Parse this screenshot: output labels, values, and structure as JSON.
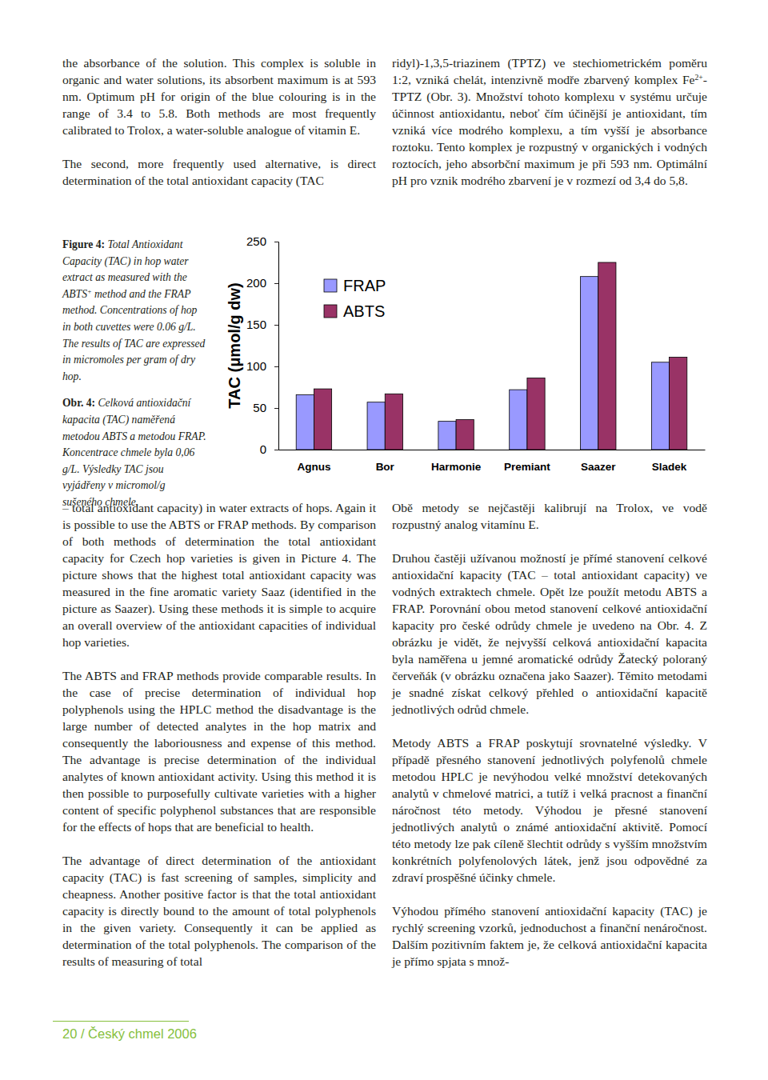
{
  "page": {
    "top_left": [
      "the absorbance of the solution. This complex is soluble in organic and water solutions, its absorbent maximum is at 593 nm. Optimum pH for origin of the blue colouring is in the range of 3.4 to 5.8. Both methods are most frequently calibrated to Trolox, a water-soluble analogue of vitamin E.",
      "The second, more frequently used alternative, is direct determination of the total antioxidant capacity (TAC"
    ],
    "top_right": [
      [
        {
          "text": "ridyl)-1,3,5-triazinem (TPTZ) ve stechiometrickém poměru 1:2, vzniká chelát, intenzivně modře zbarvený komplex Fe"
        },
        {
          "text": "2+",
          "sup": true
        },
        {
          "text": "-TPTZ (Obr. 3). Množství tohoto komplexu v systému určuje účinnost antioxidantu, neboť čím účinější je antioxidant, tím vzniká více modrého komplexu, a tím vyšší je absorbance roztoku. Tento komplex je rozpustný v organických i vodných roztocích, jeho absorbční maximum je při 593 nm. Optimální pH pro vznik modrého zbarvení je v rozmezí od 3,4 do 5,8."
        }
      ]
    ],
    "caption": [
      [
        {
          "text": "Figure 4:",
          "bold": true
        },
        {
          "text": " Total Antioxidant Capacity (TAC) in hop water extract as measured with the ABTS"
        },
        {
          "text": "+",
          "sup": true
        },
        {
          "text": " method and the FRAP method. Concentrations of hop in both cuvettes were 0.06 g/L. The results of TAC are expressed in micromoles per gram of dry hop."
        }
      ],
      [
        {
          "text": "Obr. 4:",
          "bold": true
        },
        {
          "text": " Celková antioxidační kapacita (TAC) naměřená metodou ABTS a metodou FRAP. Koncentrace chmele byla 0,06 g/L. Výsledky TAC jsou vyjádřeny v micromol/g sušeného chmele."
        }
      ]
    ],
    "bottom_left": [
      "– total antioxidant capacity) in water extracts of hops. Again it is possible to use the ABTS or FRAP methods. By comparison of both methods of determination the total antioxidant capacity for Czech hop varieties is given in Picture 4. The picture shows that the highest total antioxidant capacity was measured in the fine aromatic variety Saaz (identified in the picture as Saazer). Using these methods it is simple to acquire an overall overview of the antioxidant capacities of individual hop varieties.",
      "The ABTS and FRAP methods provide comparable results. In the case of precise determination of individual hop polyphenols using the HPLC method the disadvantage is the large number of detected analytes in the hop matrix and consequently the laboriousness and expense of this method. The advantage is precise determination of the individual analytes of known antioxidant activity. Using this method it is then possible to purposefully cultivate varieties with a higher content of specific polyphenol substances that are responsible for the effects of hops that are beneficial to health.",
      "The advantage of direct determination of the antioxidant capacity (TAC) is fast screening of samples, simplicity and cheapness. Another positive factor is that the total antioxidant capacity is directly bound to the amount of total polyphenols in the given variety. Consequently it can be applied as determination of the total polyphenols. The comparison of the results of measuring of total"
    ],
    "bottom_right": [
      "Obě metody se nejčastěji kalibrují na Trolox, ve vodě rozpustný analog vitamínu E.",
      "Druhou častěji užívanou možností je přímé stanovení celkové antioxidační kapacity (TAC – total antioxidant capacity) ve vodných extraktech chmele. Opět lze použít metodu ABTS a FRAP. Porovnání obou metod stanovení celkové antioxidační kapacity pro české odrůdy chmele je uvedeno na Obr. 4. Z obrázku je vidět, že nejvyšší celková antioxidační kapacita byla naměřena u jemné aromatické odrůdy Žatecký poloraný červeňák (v obrázku označena jako Saazer). Těmito metodami je snadné získat celkový přehled o antioxidační kapacitě jednotlivých odrůd chmele.",
      "Metody ABTS a FRAP poskytují srovnatelné výsledky. V případě přesného stanovení jednotlivých polyfenolů chmele metodou HPLC je nevýhodou velké množství detekovaných analytů v chmelové matrici, a tutíž i velká pracnost a finanční náročnost této metody. Výhodou je přesné stanovení jednotlivých analytů o známé antioxidační aktivitě. Pomocí této metody lze pak cíleně šlechtit odrůdy s vyšším množstvím konkrétních polyfenolových látek, jenž jsou odpovědné za zdraví prospěšné účinky chmele.",
      "Výhodou přímého stanovení antioxidační kapacity (TAC) je rychlý screening vzorků, jednoduchost a finanční nenáročnost. Dalším pozitivním faktem je, že celková antioxidační kapacita je přímo spjata s množ-"
    ],
    "footer": "20 / Český chmel 2006"
  },
  "chart_data": {
    "type": "bar",
    "y_label": "TAC (μmol/g dw)",
    "categories": [
      "Agnus",
      "Bor",
      "Harmonie",
      "Premiant",
      "Saazer",
      "Sladek"
    ],
    "series": [
      {
        "name": "FRAP",
        "color": "#9999ff",
        "values": [
          66,
          57,
          34,
          72,
          208,
          105
        ]
      },
      {
        "name": "ABTS",
        "color": "#993366",
        "values": [
          73,
          67,
          36,
          86,
          225,
          111
        ]
      }
    ],
    "ylim": [
      0,
      250
    ],
    "yticks": [
      0,
      50,
      100,
      150,
      200,
      250
    ],
    "grid": false,
    "legend": "upper left"
  }
}
